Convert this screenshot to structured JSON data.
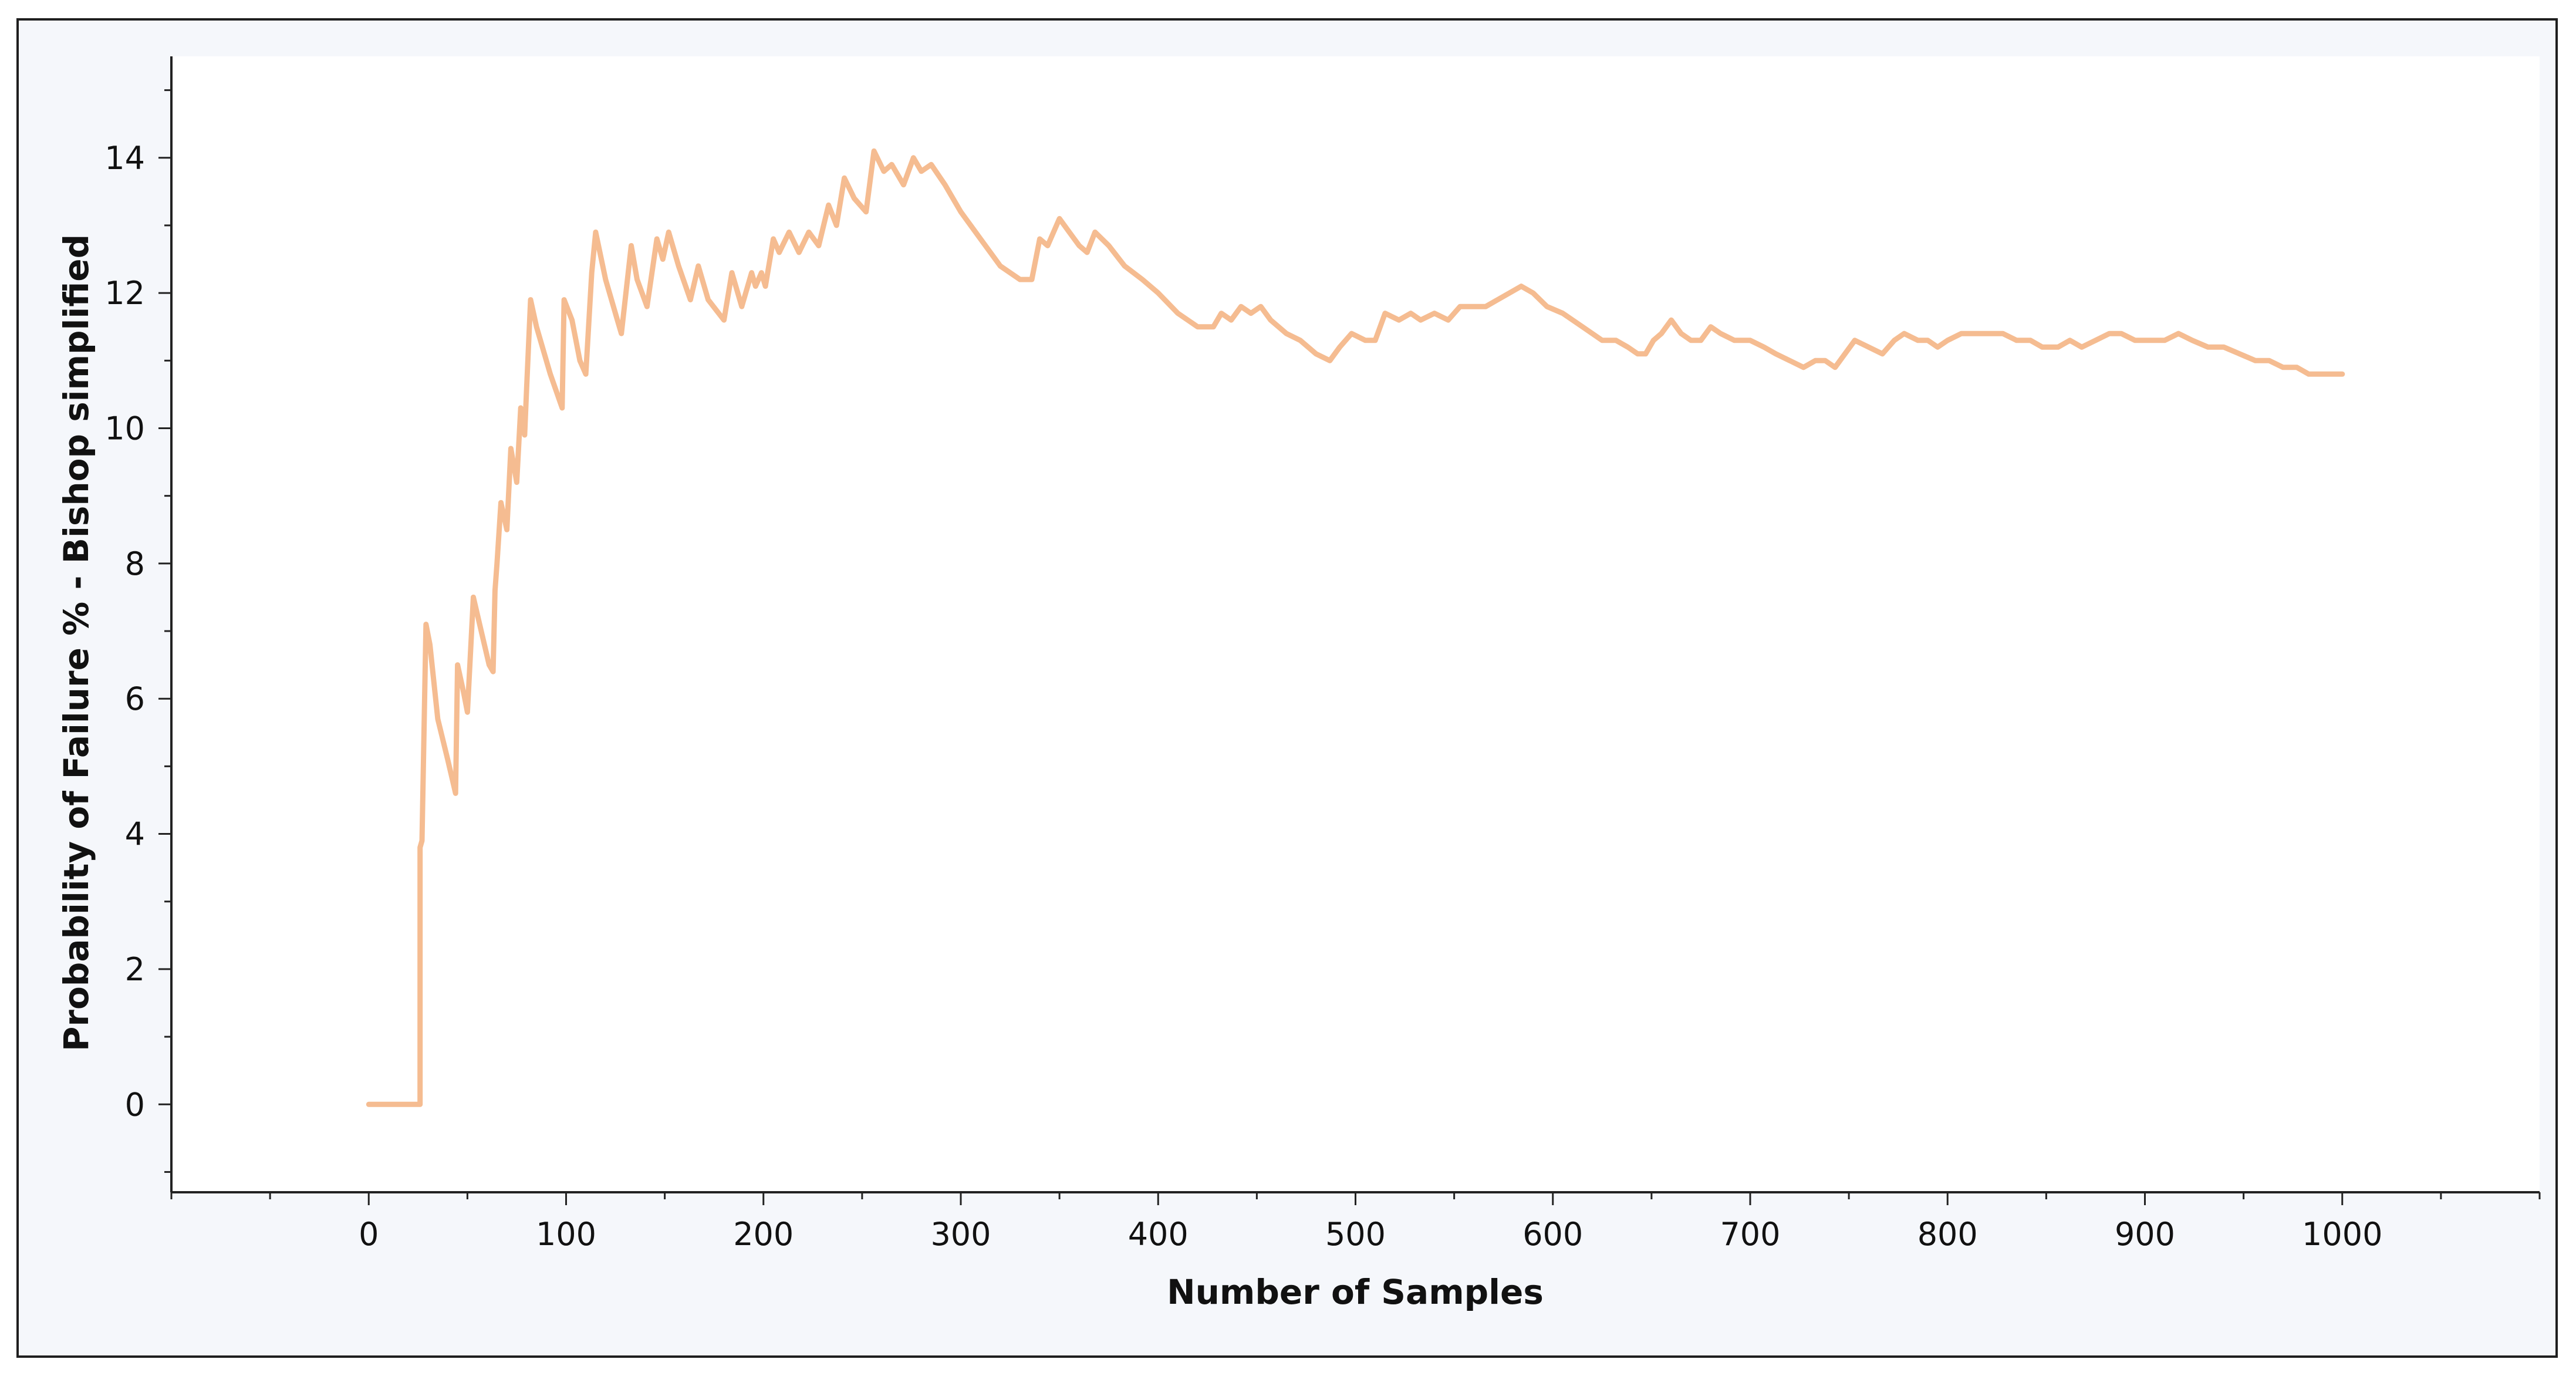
{
  "chart_data": {
    "type": "line",
    "title": "",
    "xlabel": "Number of Samples",
    "ylabel": "Probability of Failure % - Bishop simplified",
    "xlim": [
      -100,
      1100
    ],
    "ylim": [
      -1.3,
      15.5
    ],
    "x_ticks": [
      0,
      100,
      200,
      300,
      400,
      500,
      600,
      700,
      800,
      900,
      1000
    ],
    "x_minor_step": 50,
    "y_ticks": [
      0,
      2,
      4,
      6,
      8,
      10,
      12,
      14
    ],
    "y_minor_step": 1,
    "grid": false,
    "legend": "none",
    "series": [
      {
        "color": "#f5bc91",
        "points": [
          [
            0,
            0
          ],
          [
            10,
            0
          ],
          [
            20,
            0
          ],
          [
            26,
            0
          ],
          [
            26,
            3.8
          ],
          [
            27,
            3.9
          ],
          [
            28,
            5.5
          ],
          [
            29,
            7.1
          ],
          [
            31,
            6.8
          ],
          [
            35,
            5.7
          ],
          [
            40,
            5.1
          ],
          [
            44,
            4.6
          ],
          [
            45,
            6.5
          ],
          [
            48,
            6.1
          ],
          [
            50,
            5.8
          ],
          [
            53,
            7.5
          ],
          [
            57,
            7.0
          ],
          [
            61,
            6.5
          ],
          [
            63,
            6.4
          ],
          [
            64,
            7.6
          ],
          [
            65,
            8.0
          ],
          [
            67,
            8.9
          ],
          [
            70,
            8.5
          ],
          [
            72,
            9.7
          ],
          [
            75,
            9.2
          ],
          [
            77,
            10.3
          ],
          [
            79,
            9.9
          ],
          [
            80,
            10.6
          ],
          [
            82,
            11.9
          ],
          [
            85,
            11.5
          ],
          [
            92,
            10.8
          ],
          [
            98,
            10.3
          ],
          [
            99,
            11.9
          ],
          [
            103,
            11.6
          ],
          [
            107,
            11.0
          ],
          [
            110,
            10.8
          ],
          [
            113,
            12.3
          ],
          [
            115,
            12.9
          ],
          [
            120,
            12.2
          ],
          [
            126,
            11.6
          ],
          [
            128,
            11.4
          ],
          [
            133,
            12.7
          ],
          [
            136,
            12.2
          ],
          [
            141,
            11.8
          ],
          [
            146,
            12.8
          ],
          [
            149,
            12.5
          ],
          [
            152,
            12.9
          ],
          [
            157,
            12.4
          ],
          [
            163,
            11.9
          ],
          [
            167,
            12.4
          ],
          [
            172,
            11.9
          ],
          [
            180,
            11.6
          ],
          [
            184,
            12.3
          ],
          [
            189,
            11.8
          ],
          [
            194,
            12.3
          ],
          [
            196,
            12.1
          ],
          [
            199,
            12.3
          ],
          [
            201,
            12.1
          ],
          [
            205,
            12.8
          ],
          [
            208,
            12.6
          ],
          [
            213,
            12.9
          ],
          [
            218,
            12.6
          ],
          [
            223,
            12.9
          ],
          [
            228,
            12.7
          ],
          [
            233,
            13.3
          ],
          [
            237,
            13.0
          ],
          [
            241,
            13.7
          ],
          [
            246,
            13.4
          ],
          [
            252,
            13.2
          ],
          [
            256,
            14.1
          ],
          [
            261,
            13.8
          ],
          [
            265,
            13.9
          ],
          [
            271,
            13.6
          ],
          [
            276,
            14.0
          ],
          [
            280,
            13.8
          ],
          [
            285,
            13.9
          ],
          [
            292,
            13.6
          ],
          [
            300,
            13.2
          ],
          [
            310,
            12.8
          ],
          [
            320,
            12.4
          ],
          [
            330,
            12.2
          ],
          [
            336,
            12.2
          ],
          [
            340,
            12.8
          ],
          [
            344,
            12.7
          ],
          [
            350,
            13.1
          ],
          [
            355,
            12.9
          ],
          [
            360,
            12.7
          ],
          [
            364,
            12.6
          ],
          [
            368,
            12.9
          ],
          [
            375,
            12.7
          ],
          [
            383,
            12.4
          ],
          [
            392,
            12.2
          ],
          [
            400,
            12.0
          ],
          [
            410,
            11.7
          ],
          [
            420,
            11.5
          ],
          [
            428,
            11.5
          ],
          [
            432,
            11.7
          ],
          [
            437,
            11.6
          ],
          [
            442,
            11.8
          ],
          [
            447,
            11.7
          ],
          [
            452,
            11.8
          ],
          [
            457,
            11.6
          ],
          [
            465,
            11.4
          ],
          [
            472,
            11.3
          ],
          [
            480,
            11.1
          ],
          [
            487,
            11.0
          ],
          [
            492,
            11.2
          ],
          [
            498,
            11.4
          ],
          [
            505,
            11.3
          ],
          [
            510,
            11.3
          ],
          [
            515,
            11.7
          ],
          [
            522,
            11.6
          ],
          [
            528,
            11.7
          ],
          [
            533,
            11.6
          ],
          [
            540,
            11.7
          ],
          [
            547,
            11.6
          ],
          [
            553,
            11.8
          ],
          [
            560,
            11.8
          ],
          [
            566,
            11.8
          ],
          [
            572,
            11.9
          ],
          [
            578,
            12.0
          ],
          [
            584,
            12.1
          ],
          [
            590,
            12.0
          ],
          [
            597,
            11.8
          ],
          [
            605,
            11.7
          ],
          [
            615,
            11.5
          ],
          [
            625,
            11.3
          ],
          [
            632,
            11.3
          ],
          [
            638,
            11.2
          ],
          [
            643,
            11.1
          ],
          [
            647,
            11.1
          ],
          [
            651,
            11.3
          ],
          [
            655,
            11.4
          ],
          [
            660,
            11.6
          ],
          [
            665,
            11.4
          ],
          [
            670,
            11.3
          ],
          [
            675,
            11.3
          ],
          [
            680,
            11.5
          ],
          [
            685,
            11.4
          ],
          [
            692,
            11.3
          ],
          [
            700,
            11.3
          ],
          [
            707,
            11.2
          ],
          [
            713,
            11.1
          ],
          [
            720,
            11.0
          ],
          [
            727,
            10.9
          ],
          [
            733,
            11.0
          ],
          [
            738,
            11.0
          ],
          [
            743,
            10.9
          ],
          [
            748,
            11.1
          ],
          [
            753,
            11.3
          ],
          [
            760,
            11.2
          ],
          [
            767,
            11.1
          ],
          [
            773,
            11.3
          ],
          [
            778,
            11.4
          ],
          [
            785,
            11.3
          ],
          [
            790,
            11.3
          ],
          [
            795,
            11.2
          ],
          [
            800,
            11.3
          ],
          [
            807,
            11.4
          ],
          [
            813,
            11.4
          ],
          [
            820,
            11.4
          ],
          [
            828,
            11.4
          ],
          [
            835,
            11.3
          ],
          [
            842,
            11.3
          ],
          [
            848,
            11.2
          ],
          [
            856,
            11.2
          ],
          [
            862,
            11.3
          ],
          [
            868,
            11.2
          ],
          [
            875,
            11.3
          ],
          [
            882,
            11.4
          ],
          [
            888,
            11.4
          ],
          [
            895,
            11.3
          ],
          [
            903,
            11.3
          ],
          [
            910,
            11.3
          ],
          [
            917,
            11.4
          ],
          [
            924,
            11.3
          ],
          [
            932,
            11.2
          ],
          [
            940,
            11.2
          ],
          [
            948,
            11.1
          ],
          [
            956,
            11.0
          ],
          [
            963,
            11.0
          ],
          [
            970,
            10.9
          ],
          [
            977,
            10.9
          ],
          [
            983,
            10.8
          ],
          [
            990,
            10.8
          ],
          [
            995,
            10.8
          ],
          [
            1000,
            10.8
          ]
        ]
      }
    ]
  }
}
